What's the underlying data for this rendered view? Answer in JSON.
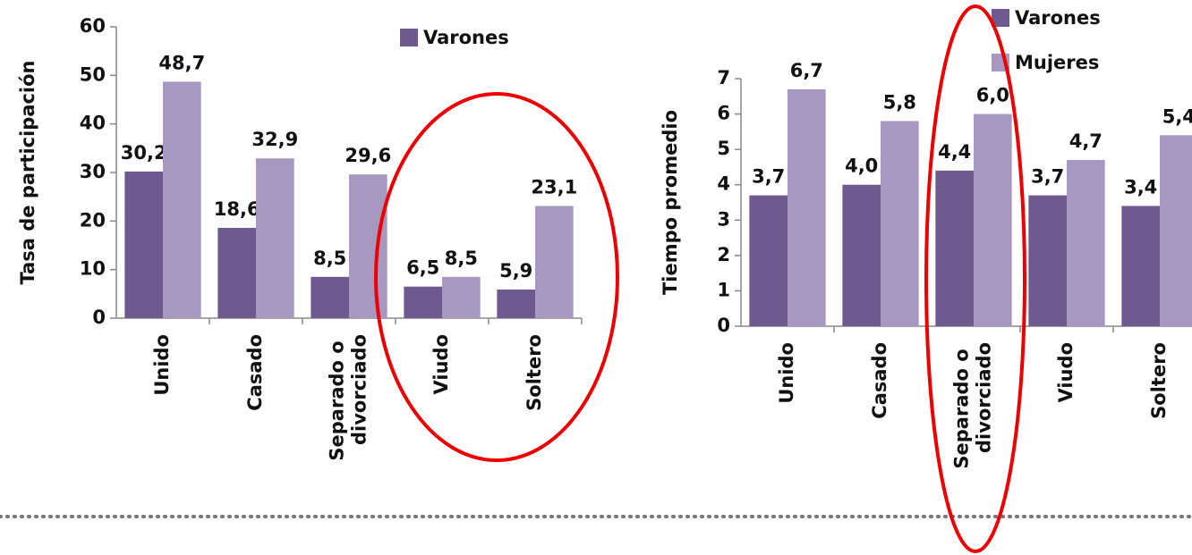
{
  "chart_data": [
    {
      "type": "bar",
      "ylabel": "Tasa de participación",
      "categories": [
        "Unido",
        "Casado",
        "Separado o divorciado",
        "Viudo",
        "Soltero"
      ],
      "series": [
        {
          "name": "Varones",
          "color": "#6e5a8e",
          "values": [
            30.2,
            18.6,
            8.5,
            6.5,
            5.9
          ],
          "value_labels": [
            "30,2",
            "18,6",
            "8,5",
            "6,5",
            "5,9"
          ]
        },
        {
          "color": "#a698c0",
          "values": [
            48.7,
            32.9,
            29.6,
            8.5,
            23.1
          ],
          "value_labels": [
            "48,7",
            "32,9",
            "29,6",
            "8,5",
            "23,1"
          ]
        }
      ],
      "ylim": [
        0,
        60
      ],
      "yticks": [
        0,
        10,
        20,
        30,
        40,
        50,
        60
      ],
      "grid": false
    },
    {
      "type": "bar",
      "ylabel": "Tiempo promedio",
      "categories": [
        "Unido",
        "Casado",
        "Separado o divorciado",
        "Viudo",
        "Soltero"
      ],
      "series": [
        {
          "name": "Varones",
          "color": "#6e5a8e",
          "values": [
            3.7,
            4.0,
            4.4,
            3.7,
            3.4
          ],
          "value_labels": [
            "3,7",
            "4,0",
            "4,4",
            "3,7",
            "3,4"
          ]
        },
        {
          "name": "Mujeres",
          "color": "#a698c0",
          "values": [
            6.7,
            5.8,
            6.0,
            4.7,
            5.4
          ],
          "value_labels": [
            "6,7",
            "5,8",
            "6,0",
            "4,7",
            "5,4"
          ]
        }
      ],
      "ylim": [
        0,
        7
      ],
      "yticks": [
        0,
        1,
        2,
        3,
        4,
        5,
        6,
        7
      ],
      "grid": false
    }
  ]
}
